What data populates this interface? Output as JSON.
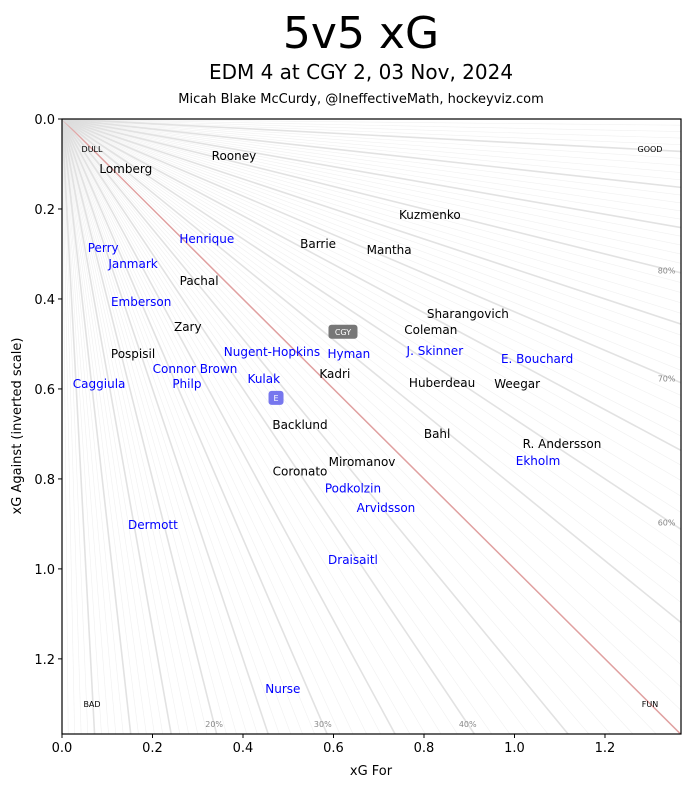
{
  "title": "5v5 xG",
  "subtitle": "EDM 4 at CGY 2, 03 Nov, 2024",
  "byline": "Micah Blake McCurdy, @IneffectiveMath, hockeyviz.com",
  "colors": {
    "home": "#000000",
    "away": "#0000ff",
    "home_box": "#777777",
    "away_box": "#7777ee",
    "even_line": "#e0a0a0",
    "ray": "#dddddd"
  },
  "chart_data": {
    "type": "scatter",
    "xlabel": "xG For",
    "ylabel": "xG Against (inverted scale)",
    "xlim": [
      0,
      1.368
    ],
    "ylim": [
      0,
      1.367
    ],
    "y_inverted": true,
    "xticks": [
      "0.0",
      "0.2",
      "0.4",
      "0.6",
      "0.8",
      "1.0",
      "1.2"
    ],
    "yticks": [
      "0.0",
      "0.2",
      "0.4",
      "0.6",
      "0.8",
      "1.0",
      "1.2"
    ],
    "corner_labels": {
      "top_left": "DULL",
      "top_right": "GOOD",
      "bottom_left": "BAD",
      "bottom_right": "FUN"
    },
    "pct_labels_bottom": [
      {
        "p": 0.2,
        "label": "20%"
      },
      {
        "p": 0.3,
        "label": "30%"
      },
      {
        "p": 0.4,
        "label": "40%"
      }
    ],
    "pct_labels_right": [
      {
        "p": 0.6,
        "label": "60%"
      },
      {
        "p": 0.7,
        "label": "70%"
      },
      {
        "p": 0.8,
        "label": "80%"
      }
    ],
    "teams": [
      {
        "name": "CGY",
        "team": "home",
        "x": 0.621,
        "y": 0.473
      },
      {
        "name": "E",
        "team": "away",
        "x": 0.473,
        "y": 0.62
      }
    ],
    "series": [
      {
        "name": "CGY",
        "team": "home",
        "points": [
          {
            "label": "Lomberg",
            "x": 0.141,
            "y": 0.082
          },
          {
            "label": "Rooney",
            "x": 0.38,
            "y": 0.082
          },
          {
            "label": "Kuzmenko",
            "x": 0.813,
            "y": 0.213
          },
          {
            "label": "Barrie",
            "x": 0.566,
            "y": 0.278
          },
          {
            "label": "Mantha",
            "x": 0.723,
            "y": 0.291
          },
          {
            "label": "Pachal",
            "x": 0.303,
            "y": 0.36
          },
          {
            "label": "Sharangovich",
            "x": 0.897,
            "y": 0.433
          },
          {
            "label": "Coleman",
            "x": 0.815,
            "y": 0.469
          },
          {
            "label": "Zary",
            "x": 0.278,
            "y": 0.462
          },
          {
            "label": "Pospisil",
            "x": 0.157,
            "y": 0.522
          },
          {
            "label": "Kadri",
            "x": 0.603,
            "y": 0.567
          },
          {
            "label": "Huberdeau",
            "x": 0.84,
            "y": 0.587
          },
          {
            "label": "Weegar",
            "x": 1.006,
            "y": 0.589
          },
          {
            "label": "Backlund",
            "x": 0.526,
            "y": 0.622
          },
          {
            "label": "Bahl",
            "x": 0.829,
            "y": 0.7
          },
          {
            "label": "R. Andersson",
            "x": 1.105,
            "y": 0.722
          },
          {
            "label": "Miromanov",
            "x": 0.663,
            "y": 0.762
          },
          {
            "label": "Coronato",
            "x": 0.526,
            "y": 0.784
          }
        ]
      },
      {
        "name": "EDM",
        "team": "away",
        "points": [
          {
            "label": "Perry",
            "x": 0.091,
            "y": 0.287
          },
          {
            "label": "Henrique",
            "x": 0.32,
            "y": 0.267
          },
          {
            "label": "Janmark",
            "x": 0.157,
            "y": 0.322
          },
          {
            "label": "Emberson",
            "x": 0.175,
            "y": 0.407
          },
          {
            "label": "Connor Brown",
            "x": 0.294,
            "y": 0.469
          },
          {
            "label": "J. Skinner",
            "x": 0.824,
            "y": 0.516
          },
          {
            "label": "Hyman",
            "x": 0.634,
            "y": 0.551
          },
          {
            "label": "E. Bouchard",
            "x": 1.05,
            "y": 0.562
          },
          {
            "label": "Caggiula",
            "x": 0.082,
            "y": 0.589
          },
          {
            "label": "Philp",
            "x": 0.276,
            "y": 0.589
          },
          {
            "label": "Nugent-Hopkins",
            "x": 0.464,
            "y": 0.576
          },
          {
            "label": "Kulak",
            "x": 0.446,
            "y": 0.607
          },
          {
            "label": "Ekholm",
            "x": 1.052,
            "y": 0.731
          },
          {
            "label": "Podkolzin",
            "x": 0.643,
            "y": 0.764
          },
          {
            "label": "Arvidsson",
            "x": 0.716,
            "y": 0.807
          },
          {
            "label": "Dermott",
            "x": 0.201,
            "y": 0.902
          },
          {
            "label": "Draisaitl",
            "x": 0.643,
            "y": 0.98
          },
          {
            "label": "Nurse",
            "x": 0.488,
            "y": 1.267
          }
        ]
      }
    ]
  }
}
